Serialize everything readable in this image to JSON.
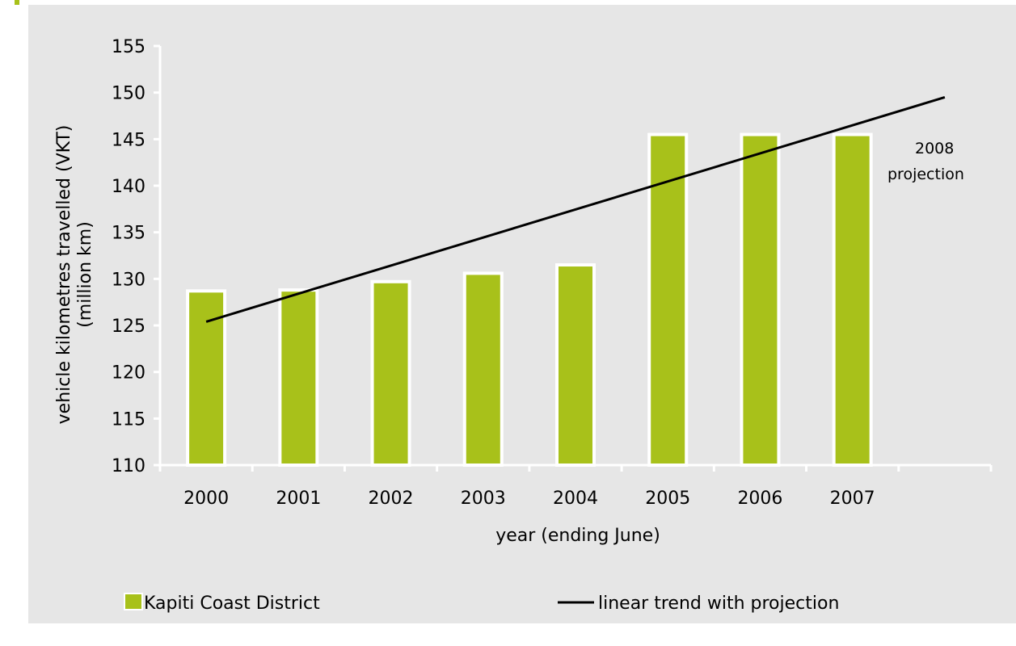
{
  "colors": {
    "accent": "#a8c11a",
    "bar_fill": "#a8c11a",
    "bar_stroke": "#ffffff",
    "trend_line": "#000000",
    "panel": "#e6e6e6"
  },
  "chart_data": {
    "type": "bar",
    "categories": [
      "2000",
      "2001",
      "2002",
      "2003",
      "2004",
      "2005",
      "2006",
      "2007",
      ""
    ],
    "series": [
      {
        "name": "Kapiti Coast District",
        "type": "bar",
        "values": [
          128.7,
          128.8,
          129.7,
          130.6,
          131.5,
          145.5,
          145.5,
          145.5,
          null
        ]
      },
      {
        "name": "linear trend with projection",
        "type": "line",
        "points": [
          {
            "x": "2000",
            "y": 125.4
          },
          {
            "x": "2008",
            "y": 149.5
          }
        ]
      }
    ],
    "xlabel": "year (ending June)",
    "ylabel_lines": [
      "vehicle kilometres travelled (VKT)",
      "(million km)"
    ],
    "ylim": [
      110,
      155
    ],
    "yticks": [
      110,
      115,
      120,
      125,
      130,
      135,
      140,
      145,
      150,
      155
    ],
    "grid": false,
    "legend_position": "bottom",
    "annotation_lines": [
      "2008",
      "projection"
    ]
  }
}
